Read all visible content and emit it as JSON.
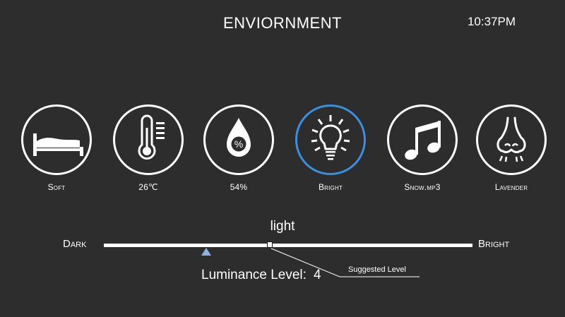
{
  "header": {
    "title": "ENVIORNMENT",
    "time": "10:37PM"
  },
  "modes": [
    {
      "label": "Soft",
      "icon": "bed-icon"
    },
    {
      "label": "26℃",
      "icon": "thermometer-icon"
    },
    {
      "label": "54%",
      "icon": "humidity-drop-icon"
    },
    {
      "label": "Bright",
      "icon": "lightbulb-icon",
      "selected": true
    },
    {
      "label": "Snow.mp3",
      "icon": "music-note-icon"
    },
    {
      "label": "Lavender",
      "icon": "nose-icon"
    }
  ],
  "slider": {
    "title": "light",
    "min_label": "Dark",
    "max_label": "Bright",
    "level_label": "Luminance Level:",
    "level_value": "4",
    "suggested_label": "Suggested Level",
    "current_position": 0.45,
    "suggested_position": 0.28
  },
  "colors": {
    "background": "#2d2d2d",
    "accent": "#3a8fe0",
    "marker": "#8ab4e6"
  }
}
